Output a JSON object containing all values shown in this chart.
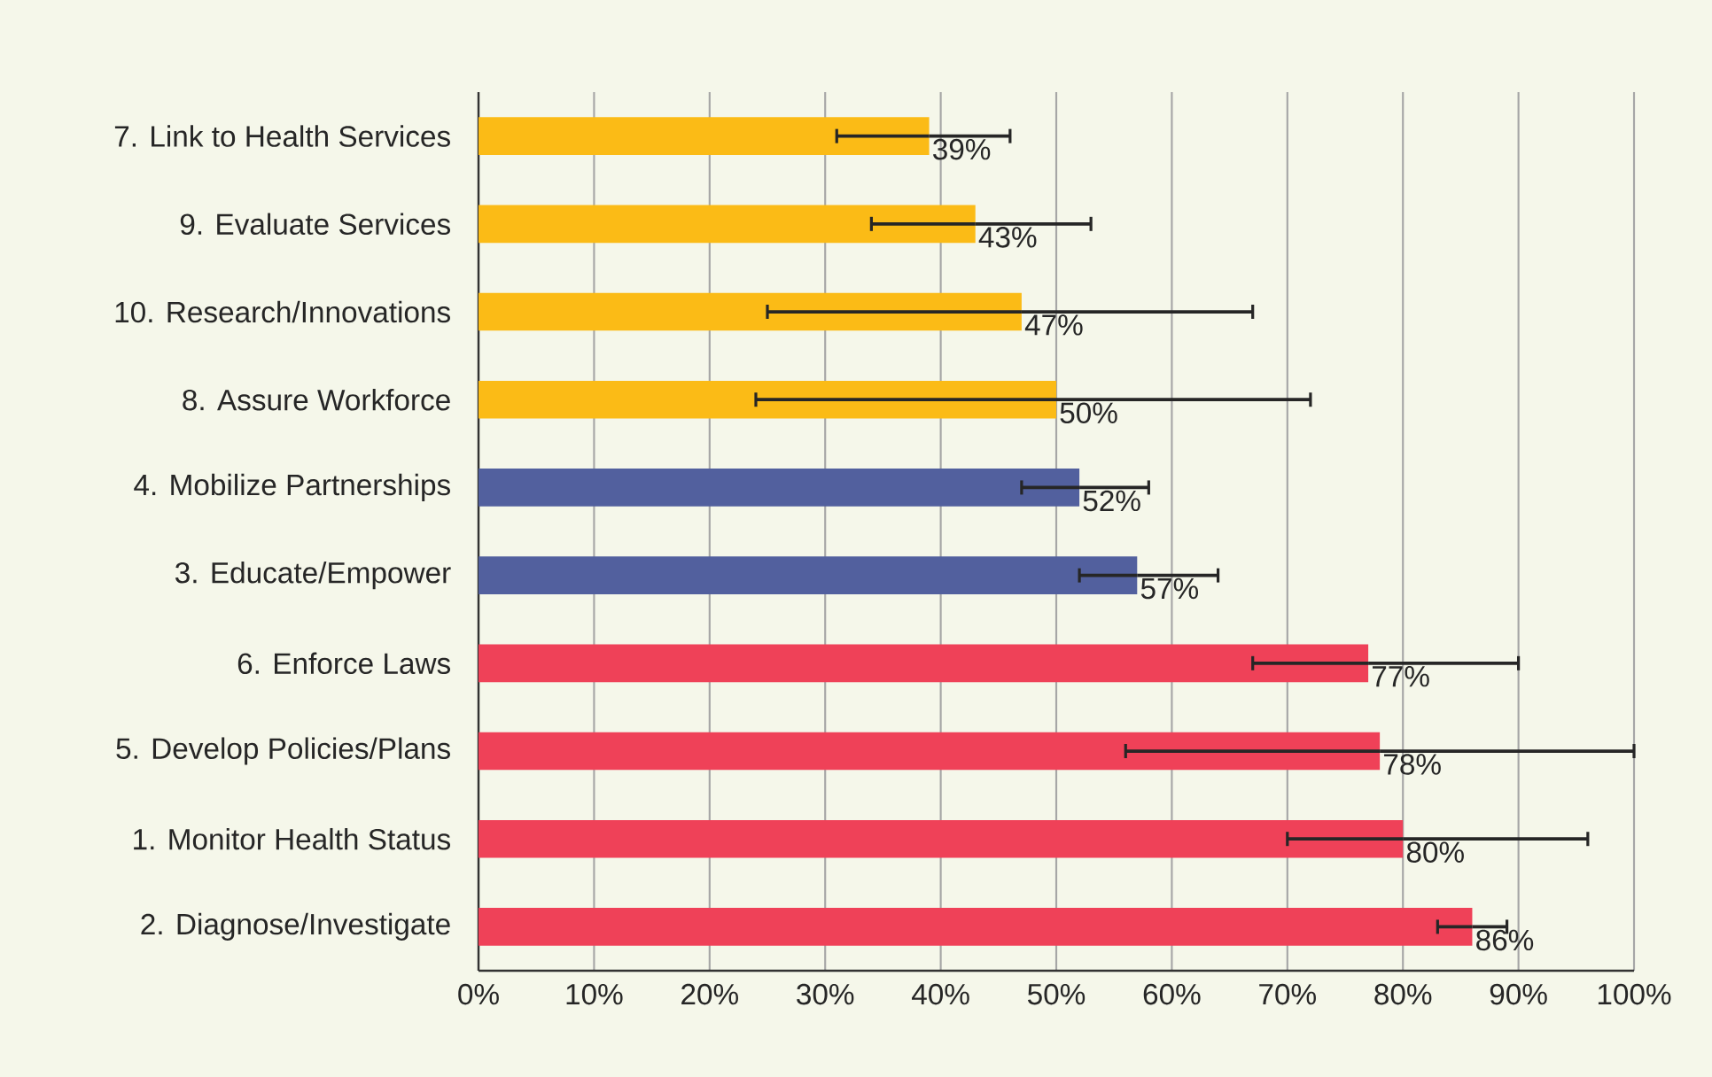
{
  "chart_data": {
    "type": "bar",
    "orientation": "horizontal",
    "categories": [
      "7. Link to Health Services",
      "9. Evaluate Services",
      "10. Research/Innovations",
      "8. Assure Workforce",
      "4. Mobilize Partnerships",
      "3. Educate/Empower",
      "6. Enforce Laws",
      "5. Develop Policies/Plans",
      "1. Monitor Health Status",
      "2. Diagnose/Investigate"
    ],
    "values": [
      39,
      43,
      47,
      50,
      52,
      57,
      77,
      78,
      80,
      86
    ],
    "value_labels": [
      "39%",
      "43%",
      "47%",
      "50%",
      "52%",
      "57%",
      "77%",
      "78%",
      "80%",
      "86%"
    ],
    "colors": [
      "#fbbb16",
      "#fbbb16",
      "#fbbb16",
      "#fbbb16",
      "#52609e",
      "#52609e",
      "#ef4158",
      "#ef4158",
      "#ef4158",
      "#ef4158"
    ],
    "errors": [
      [
        31,
        46
      ],
      [
        34,
        53
      ],
      [
        25,
        67
      ],
      [
        24,
        72
      ],
      [
        47,
        58
      ],
      [
        52,
        64
      ],
      [
        67,
        90
      ],
      [
        56,
        100
      ],
      [
        70,
        96
      ],
      [
        83,
        89
      ]
    ],
    "xlim": [
      0,
      100
    ],
    "xticks": [
      {
        "value": 0,
        "label": "0%"
      },
      {
        "value": 10,
        "label": "10%"
      },
      {
        "value": 20,
        "label": "20%"
      },
      {
        "value": 30,
        "label": "30%"
      },
      {
        "value": 40,
        "label": "40%"
      },
      {
        "value": 50,
        "label": "50%"
      },
      {
        "value": 60,
        "label": "60%"
      },
      {
        "value": 70,
        "label": "70%"
      },
      {
        "value": 80,
        "label": "80%"
      },
      {
        "value": 90,
        "label": "90%"
      },
      {
        "value": 100,
        "label": "100%"
      }
    ],
    "grid": "x"
  }
}
